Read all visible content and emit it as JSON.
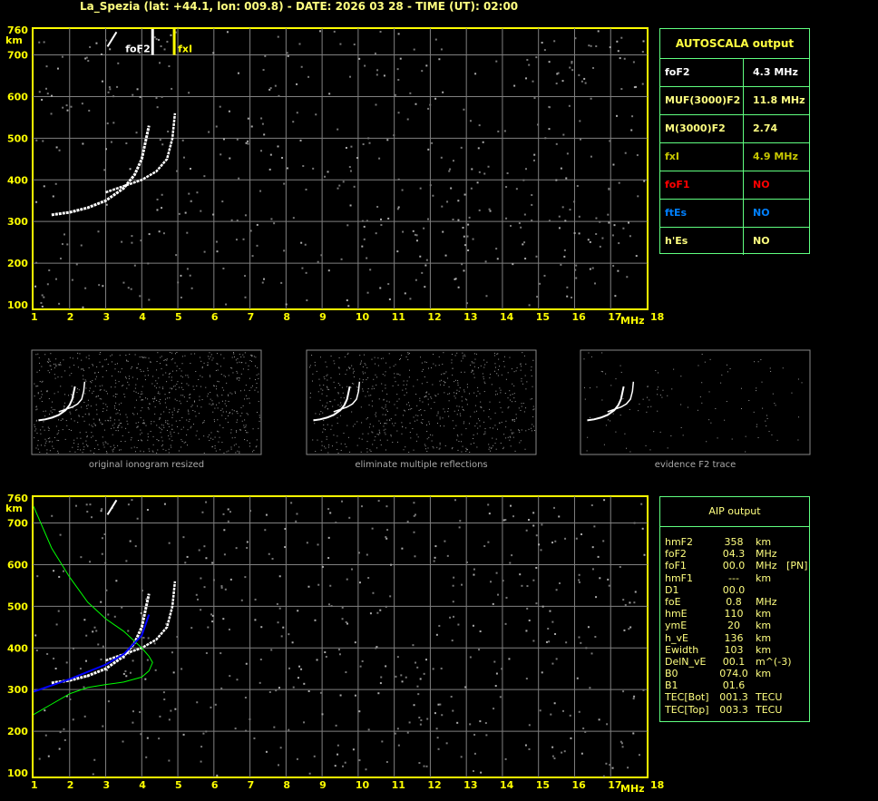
{
  "title": "La_Spezia (lat: +44.1, lon: 009.8) - DATE: 2026 03 28 - TIME (UT): 02:00",
  "colors": {
    "axis": "#ffff00",
    "grid": "#808080",
    "trace": "#ffffff",
    "profile": "#00ff00",
    "fit": "#0000ff",
    "panel_border": "#60ff80"
  },
  "autoscala": {
    "title": "AUTOSCALA output",
    "rows": [
      {
        "key": "foF2",
        "value": "4.3 MHz",
        "color": "#ffffff"
      },
      {
        "key": "MUF(3000)F2",
        "value": "11.8 MHz",
        "color": "#ffff80"
      },
      {
        "key": "M(3000)F2",
        "value": "2.74",
        "color": "#ffff80"
      },
      {
        "key": "fxI",
        "value": "4.9 MHz",
        "color": "#c8c800"
      },
      {
        "key": "foF1",
        "value": "NO",
        "color": "#ff0000"
      },
      {
        "key": "ftEs",
        "value": "NO",
        "color": "#0080ff"
      },
      {
        "key": "h'Es",
        "value": "NO",
        "color": "#ffff80"
      }
    ]
  },
  "aip": {
    "title": "AIP output",
    "rows": [
      [
        "hmF2",
        "358",
        "km"
      ],
      [
        "foF2",
        "04.3",
        "MHz"
      ],
      [
        "foF1",
        "00.0",
        "MHz   [PN]"
      ],
      [
        "hmF1",
        "---",
        "km"
      ],
      [
        "D1",
        "00.0",
        ""
      ],
      [
        "foE",
        "0.8",
        "MHz"
      ],
      [
        "hmE",
        "110",
        "km"
      ],
      [
        "ymE",
        "20",
        "km"
      ],
      [
        "h_vE",
        "136",
        "km"
      ],
      [
        "Ewidth",
        "103",
        "km"
      ],
      [
        "DelN_vE",
        "00.1",
        "m^(-3)"
      ],
      [
        "B0",
        "074.0",
        "km"
      ],
      [
        "B1",
        "01.6",
        ""
      ],
      [
        "TEC[Bot]",
        "001.3",
        "TECU"
      ],
      [
        "TEC[Top]",
        "003.3",
        "TECU"
      ]
    ]
  },
  "captions": [
    "original ionogram resized",
    "eliminate multiple reflections",
    "evidence F2 trace"
  ],
  "chart_data": {
    "type": "scatter",
    "xlabel": "MHz",
    "ylabel": "km",
    "xlim": [
      1,
      18
    ],
    "ylim": [
      100,
      760
    ],
    "x_ticks": [
      "1",
      "2",
      "3",
      "4",
      "5",
      "6",
      "7",
      "8",
      "9",
      "10",
      "11",
      "12",
      "13",
      "14",
      "15",
      "16",
      "17",
      "18"
    ],
    "y_ticks": [
      "100",
      "200",
      "300",
      "400",
      "500",
      "600",
      "700",
      "760"
    ],
    "grid": true,
    "markers": [
      {
        "label": "foF2",
        "x": 4.3
      },
      {
        "label": "fxI",
        "x": 4.9
      }
    ],
    "o_trace": [
      [
        1.5,
        316
      ],
      [
        2,
        322
      ],
      [
        2.5,
        333
      ],
      [
        3,
        350
      ],
      [
        3.5,
        380
      ],
      [
        3.8,
        412
      ],
      [
        4.0,
        450
      ],
      [
        4.1,
        490
      ],
      [
        4.2,
        530
      ]
    ],
    "x_trace": [
      [
        3.0,
        370
      ],
      [
        3.5,
        385
      ],
      [
        4.0,
        400
      ],
      [
        4.4,
        420
      ],
      [
        4.7,
        450
      ],
      [
        4.85,
        500
      ],
      [
        4.92,
        560
      ]
    ],
    "profile": [
      [
        1.0,
        740
      ],
      [
        1.5,
        640
      ],
      [
        2,
        570
      ],
      [
        2.5,
        510
      ],
      [
        3,
        470
      ],
      [
        3.5,
        440
      ],
      [
        4,
        400
      ],
      [
        4.2,
        380
      ],
      [
        4.3,
        365
      ],
      [
        4.2,
        345
      ],
      [
        4,
        330
      ],
      [
        3.5,
        318
      ],
      [
        3,
        312
      ],
      [
        2.5,
        305
      ],
      [
        2,
        290
      ],
      [
        1.5,
        265
      ],
      [
        1,
        240
      ]
    ],
    "fit": [
      [
        1.0,
        295
      ],
      [
        2,
        325
      ],
      [
        3,
        360
      ],
      [
        3.5,
        385
      ],
      [
        4,
        430
      ],
      [
        4.2,
        480
      ]
    ]
  }
}
